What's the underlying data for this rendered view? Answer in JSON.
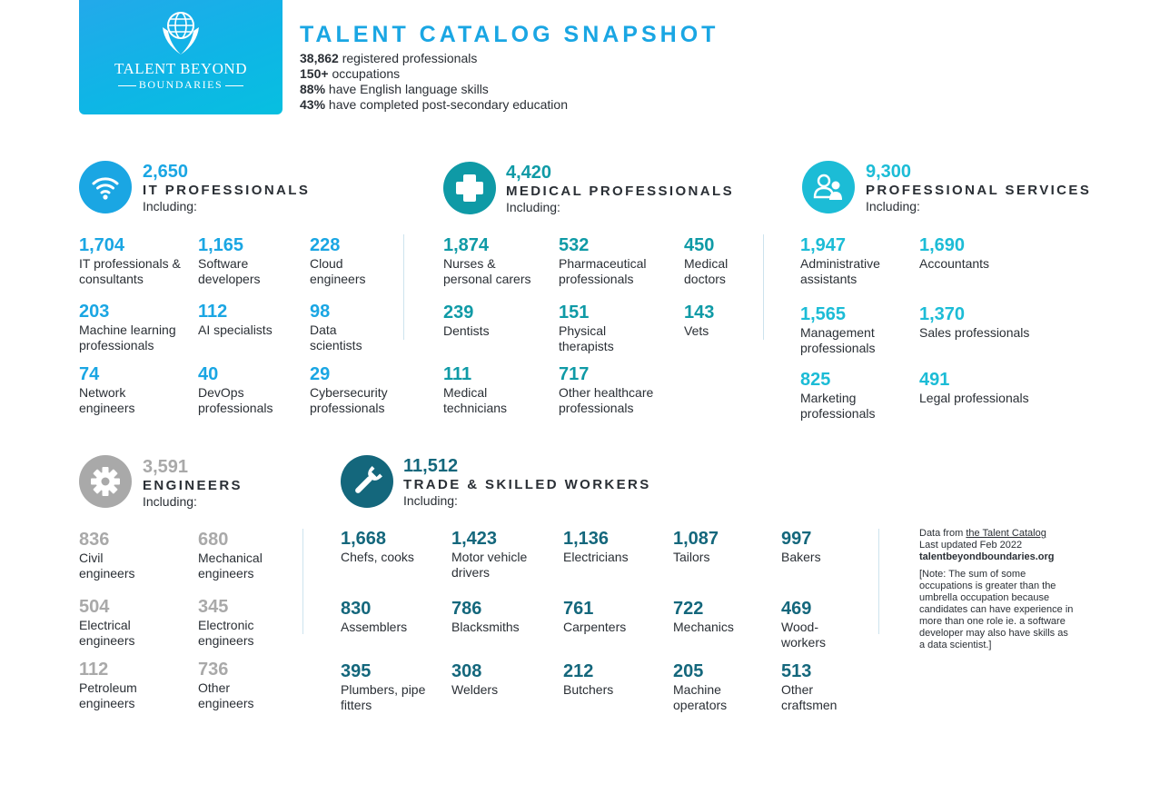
{
  "logo": {
    "line1": "TALENT BEYOND",
    "line2": "BOUNDARIES"
  },
  "title": "TALENT CATALOG SNAPSHOT",
  "stats": [
    {
      "value": "38,862",
      "text": "registered professionals"
    },
    {
      "value": "150+",
      "text": "occupations"
    },
    {
      "value": "88%",
      "text": "have English language skills"
    },
    {
      "value": "43%",
      "text": "have completed post-secondary education"
    }
  ],
  "colors": {
    "it": "#1aa6e3",
    "medical": "#0f9aa6",
    "services": "#1cbcd6",
    "engineers": "#a9a9a9",
    "trades": "#14677c"
  },
  "categories": {
    "it": {
      "icon": "wifi-icon",
      "count": "2,650",
      "name": "IT PROFESSIONALS",
      "including": "Including:",
      "items": [
        {
          "value": "1,704",
          "label": "IT professionals & consultants"
        },
        {
          "value": "1,165",
          "label": "Software developers"
        },
        {
          "value": "228",
          "label": "Cloud engineers"
        },
        {
          "value": "203",
          "label": "Machine learning professionals"
        },
        {
          "value": "112",
          "label": "AI specialists"
        },
        {
          "value": "98",
          "label": "Data scientists"
        },
        {
          "value": "74",
          "label": "Network engineers"
        },
        {
          "value": "40",
          "label": "DevOps professionals"
        },
        {
          "value": "29",
          "label": "Cybersecurity professionals"
        }
      ]
    },
    "medical": {
      "icon": "medical-cross-icon",
      "count": "4,420",
      "name": "MEDICAL PROFESSIONALS",
      "including": "Including:",
      "items": [
        {
          "value": "1,874",
          "label": "Nurses & personal carers"
        },
        {
          "value": "532",
          "label": "Pharmaceutical professionals"
        },
        {
          "value": "450",
          "label": "Medical doctors"
        },
        {
          "value": "239",
          "label": "Dentists"
        },
        {
          "value": "151",
          "label": "Physical therapists"
        },
        {
          "value": "143",
          "label": "Vets"
        },
        {
          "value": "111",
          "label": "Medical technicians"
        },
        {
          "value": "717",
          "label": "Other healthcare professionals"
        }
      ]
    },
    "services": {
      "icon": "people-icon",
      "count": "9,300",
      "name": "PROFESSIONAL SERVICES",
      "including": "Including:",
      "items": [
        {
          "value": "1,947",
          "label": "Administrative assistants"
        },
        {
          "value": "1,690",
          "label": "Accountants"
        },
        {
          "value": "1,565",
          "label": "Management professionals"
        },
        {
          "value": "1,370",
          "label": "Sales professionals"
        },
        {
          "value": "825",
          "label": "Marketing professionals"
        },
        {
          "value": "491",
          "label": "Legal professionals"
        }
      ]
    },
    "engineers": {
      "icon": "gear-icon",
      "count": "3,591",
      "name": "ENGINEERS",
      "including": "Including:",
      "items": [
        {
          "value": "836",
          "label": "Civil engineers"
        },
        {
          "value": "680",
          "label": "Mechanical engineers"
        },
        {
          "value": "504",
          "label": "Electrical engineers"
        },
        {
          "value": "345",
          "label": "Electronic engineers"
        },
        {
          "value": "112",
          "label": "Petroleum engineers"
        },
        {
          "value": "736",
          "label": "Other engineers"
        }
      ]
    },
    "trades": {
      "icon": "wrench-icon",
      "count": "11,512",
      "name": "TRADE & SKILLED WORKERS",
      "including": "Including:",
      "items": [
        {
          "value": "1,668",
          "label": "Chefs, cooks"
        },
        {
          "value": "1,423",
          "label": "Motor vehicle drivers"
        },
        {
          "value": "1,136",
          "label": "Electricians"
        },
        {
          "value": "1,087",
          "label": "Tailors"
        },
        {
          "value": "997",
          "label": "Bakers"
        },
        {
          "value": "830",
          "label": "Assemblers"
        },
        {
          "value": "786",
          "label": "Blacksmiths"
        },
        {
          "value": "761",
          "label": "Carpenters"
        },
        {
          "value": "722",
          "label": "Mechanics"
        },
        {
          "value": "469",
          "label": "Wood-workers"
        },
        {
          "value": "395",
          "label": "Plumbers, pipe fitters"
        },
        {
          "value": "308",
          "label": "Welders"
        },
        {
          "value": "212",
          "label": "Butchers"
        },
        {
          "value": "205",
          "label": "Machine operators"
        },
        {
          "value": "513",
          "label": "Other craftsmen"
        }
      ]
    }
  },
  "notes": {
    "source_prefix": "Data from",
    "source_link": "the Talent Catalog",
    "updated": "Last updated Feb 2022",
    "website": "talentbeyondboundaries.org",
    "note": "[Note: The sum of some occupations is greater than the umbrella occupation because candidates can have experience in more than one role ie. a software developer may also have skills as a data scientist.]"
  }
}
